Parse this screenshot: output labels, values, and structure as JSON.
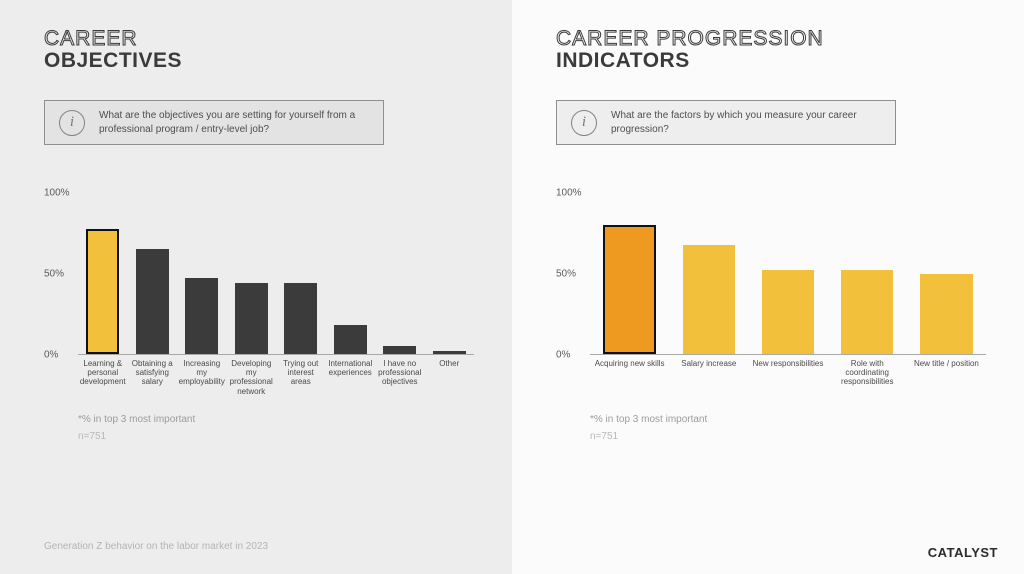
{
  "left": {
    "title_line1": "CAREER",
    "title_line2": "OBJECTIVES",
    "question": "What are the objectives you are setting for yourself from a professional program / entry-level job?",
    "chart": {
      "type": "bar",
      "ylim": [
        0,
        100
      ],
      "yticks": [
        0,
        50,
        100
      ],
      "ytick_labels": [
        "0%",
        "50%",
        "100%"
      ],
      "axis_color": "#a8a8a8",
      "label_fontsize": 8,
      "tick_fontsize": 10,
      "bars": [
        {
          "label": "Learning & personal development",
          "value": 78,
          "fill": "#f2c03b",
          "border": "#111111",
          "border_width": 2
        },
        {
          "label": "Obtaining a satisfying salary",
          "value": 65,
          "fill": "#3b3b3b",
          "border": "none",
          "border_width": 0
        },
        {
          "label": "Increasing my employability",
          "value": 47,
          "fill": "#3b3b3b",
          "border": "none",
          "border_width": 0
        },
        {
          "label": "Developing my professional network",
          "value": 44,
          "fill": "#3b3b3b",
          "border": "none",
          "border_width": 0
        },
        {
          "label": "Trying out interest areas",
          "value": 44,
          "fill": "#3b3b3b",
          "border": "none",
          "border_width": 0
        },
        {
          "label": "International experiences",
          "value": 18,
          "fill": "#3b3b3b",
          "border": "none",
          "border_width": 0
        },
        {
          "label": "I have no professional objectives",
          "value": 5,
          "fill": "#3b3b3b",
          "border": "none",
          "border_width": 0
        },
        {
          "label": "Other",
          "value": 2,
          "fill": "#3b3b3b",
          "border": "none",
          "border_width": 0
        }
      ]
    },
    "footnote": "*% in top 3 most important",
    "n": "n=751"
  },
  "right": {
    "title_line1": "CAREER PROGRESSION",
    "title_line2": "INDICATORS",
    "question": "What are the factors by which you measure your career progression?",
    "chart": {
      "type": "bar",
      "ylim": [
        0,
        100
      ],
      "yticks": [
        0,
        50,
        100
      ],
      "ytick_labels": [
        "0%",
        "50%",
        "100%"
      ],
      "axis_color": "#a8a8a8",
      "label_fontsize": 8,
      "tick_fontsize": 10,
      "bars": [
        {
          "label": "Acquiring new skills",
          "value": 80,
          "fill": "#ee9a20",
          "border": "#111111",
          "border_width": 2
        },
        {
          "label": "Salary increase",
          "value": 68,
          "fill": "#f2c03b",
          "border": "none",
          "border_width": 0
        },
        {
          "label": "New responsibilities",
          "value": 52,
          "fill": "#f2c03b",
          "border": "none",
          "border_width": 0
        },
        {
          "label": "Role with coordinating responsibilities",
          "value": 52,
          "fill": "#f2c03b",
          "border": "none",
          "border_width": 0
        },
        {
          "label": "New title / position",
          "value": 50,
          "fill": "#f2c03b",
          "border": "none",
          "border_width": 0
        }
      ]
    },
    "footnote": "*% in top 3 most important",
    "n": "n=751"
  },
  "source": "Generation Z behavior on the labor market in 2023",
  "brand": "CATALYST"
}
